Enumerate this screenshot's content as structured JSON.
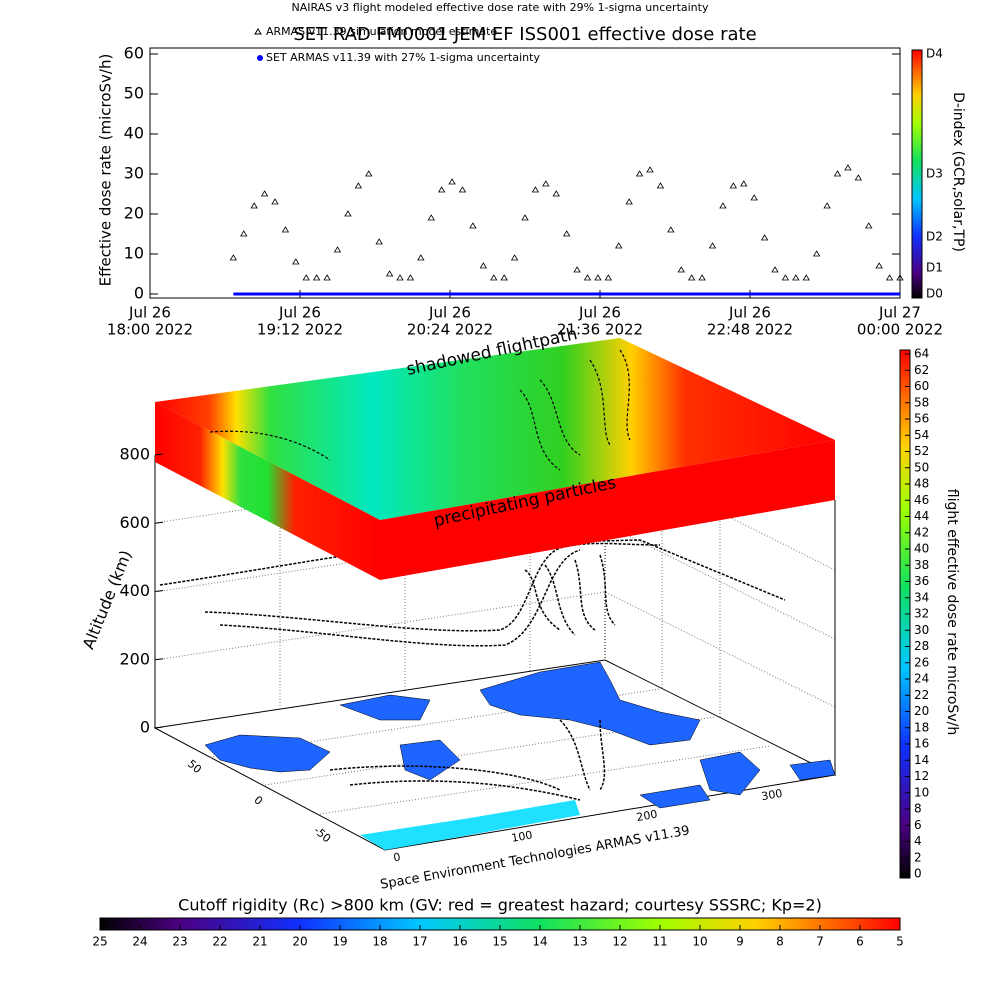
{
  "chart_data": [
    {
      "type": "scatter",
      "header": "NAIRAS v3 flight modeled effective dose rate with 29% 1-sigma uncertainty",
      "title": "SET RAD FM0001 JEM EF ISS001 effective dose rate",
      "ylabel": "Effective dose rate (microSv/h)",
      "ylim": [
        -1,
        61.5
      ],
      "yticks": [
        0,
        10,
        20,
        30,
        40,
        50,
        60
      ],
      "xlim": [
        "2022-07-26T18:00",
        "2022-07-27T00:00"
      ],
      "xticks": [
        {
          "value": "2022-07-26T18:00",
          "label": [
            "Jul 26",
            "18:00  2022"
          ]
        },
        {
          "value": "2022-07-26T19:12",
          "label": [
            "Jul 26",
            "19:12  2022"
          ]
        },
        {
          "value": "2022-07-26T20:24",
          "label": [
            "Jul 26",
            "20:24  2022"
          ]
        },
        {
          "value": "2022-07-26T21:36",
          "label": [
            "Jul 26",
            "21:36  2022"
          ]
        },
        {
          "value": "2022-07-26T22:48",
          "label": [
            "Jul 26",
            "22:48  2022"
          ]
        },
        {
          "value": "2022-07-27T00:00",
          "label": [
            "Jul 27",
            "00:00  2022"
          ]
        }
      ],
      "x": [
        "2022-07-26T18:40",
        "2022-07-26T18:45",
        "2022-07-26T18:50",
        "2022-07-26T18:55",
        "2022-07-26T19:00",
        "2022-07-26T19:05",
        "2022-07-26T19:10",
        "2022-07-26T19:15",
        "2022-07-26T19:20",
        "2022-07-26T19:25",
        "2022-07-26T19:30",
        "2022-07-26T19:35",
        "2022-07-26T19:40",
        "2022-07-26T19:45",
        "2022-07-26T19:50",
        "2022-07-26T19:55",
        "2022-07-26T20:00",
        "2022-07-26T20:05",
        "2022-07-26T20:10",
        "2022-07-26T20:15",
        "2022-07-26T20:20",
        "2022-07-26T20:25",
        "2022-07-26T20:30",
        "2022-07-26T20:35",
        "2022-07-26T20:40",
        "2022-07-26T20:45",
        "2022-07-26T20:50",
        "2022-07-26T20:55",
        "2022-07-26T21:00",
        "2022-07-26T21:05",
        "2022-07-26T21:10",
        "2022-07-26T21:15",
        "2022-07-26T21:20",
        "2022-07-26T21:25",
        "2022-07-26T21:30",
        "2022-07-26T21:35",
        "2022-07-26T21:40",
        "2022-07-26T21:45",
        "2022-07-26T21:50",
        "2022-07-26T21:55",
        "2022-07-26T22:00",
        "2022-07-26T22:05",
        "2022-07-26T22:10",
        "2022-07-26T22:15",
        "2022-07-26T22:20",
        "2022-07-26T22:25",
        "2022-07-26T22:30",
        "2022-07-26T22:35",
        "2022-07-26T22:40",
        "2022-07-26T22:45",
        "2022-07-26T22:50",
        "2022-07-26T22:55",
        "2022-07-26T23:00",
        "2022-07-26T23:05",
        "2022-07-26T23:10",
        "2022-07-26T23:15",
        "2022-07-26T23:20",
        "2022-07-26T23:25",
        "2022-07-26T23:30",
        "2022-07-26T23:35",
        "2022-07-26T23:40",
        "2022-07-26T23:45",
        "2022-07-26T23:50",
        "2022-07-26T23:55",
        "2022-07-27T00:00"
      ],
      "series": [
        {
          "name": "ARMAS v11.39 simulation model estimate",
          "color": "#000000",
          "marker": "triangle",
          "values": [
            9,
            15,
            22,
            25,
            23,
            16,
            8,
            4,
            4,
            4,
            11,
            20,
            27,
            30,
            13,
            5,
            4,
            4,
            9,
            19,
            26,
            28,
            26,
            17,
            7,
            4,
            4,
            9,
            19,
            26,
            27.5,
            25,
            15,
            6,
            4,
            4,
            4,
            12,
            23,
            30,
            31,
            27,
            16,
            6,
            4,
            4,
            12,
            22,
            27,
            27.5,
            24,
            14,
            6,
            4,
            4,
            4,
            10,
            22,
            30,
            31.5,
            29,
            17,
            7,
            4,
            4
          ]
        },
        {
          "name": "SET ARMAS v11.39 with 27% 1-sigma uncertainty",
          "color": "#0000ff",
          "marker": "line",
          "values": [
            0,
            0,
            0,
            0,
            0,
            0,
            0,
            0,
            0,
            0,
            0,
            0,
            0,
            0,
            0,
            0,
            0,
            0,
            0,
            0,
            0,
            0,
            0,
            0,
            0,
            0,
            0,
            0,
            0,
            0,
            0,
            0,
            0,
            0,
            0,
            0,
            0,
            0,
            0,
            0,
            0,
            0,
            0,
            0,
            0,
            0,
            0,
            0,
            0,
            0,
            0,
            0,
            0,
            0,
            0,
            0,
            0,
            0,
            0,
            0,
            0,
            0,
            0,
            0,
            0
          ]
        }
      ],
      "colorbar": {
        "label": "D-index (GCR,solar,TP)",
        "ticks": [
          "D0",
          "D1",
          "D2",
          "D3",
          "D4"
        ]
      }
    },
    {
      "type": "surface3d",
      "annotations": [
        "shadowed flightpath",
        "precipitating particles"
      ],
      "zlabel": "Altitude (km)",
      "zlim": [
        0,
        800
      ],
      "zticks": [
        0,
        200,
        400,
        600,
        800
      ],
      "latlim": [
        -90,
        90
      ],
      "latticks": [
        -50,
        0,
        50
      ],
      "lonlim": [
        0,
        360
      ],
      "lonticks": [
        0,
        100,
        200,
        300
      ],
      "credit": "Space Environment Technologies ARMAS v11.39",
      "colorbar": {
        "label": "flight effective dose rate microSv/h",
        "lim": [
          0,
          64
        ],
        "ticks": [
          0,
          2,
          4,
          6,
          8,
          10,
          12,
          14,
          16,
          18,
          20,
          22,
          24,
          26,
          28,
          30,
          32,
          34,
          36,
          38,
          40,
          42,
          44,
          46,
          48,
          50,
          52,
          54,
          56,
          58,
          60,
          62,
          64
        ]
      },
      "rigidity_colorbar": {
        "title": "Cutoff rigidity (Rc) >800 km (GV: red = greatest hazard; courtesy SSSRC; Kp=2)",
        "lim": [
          25,
          5
        ],
        "ticks": [
          25,
          24,
          23,
          22,
          21,
          20,
          19,
          18,
          17,
          16,
          15,
          14,
          13,
          12,
          11,
          10,
          9,
          8,
          7,
          6,
          5
        ]
      }
    }
  ]
}
